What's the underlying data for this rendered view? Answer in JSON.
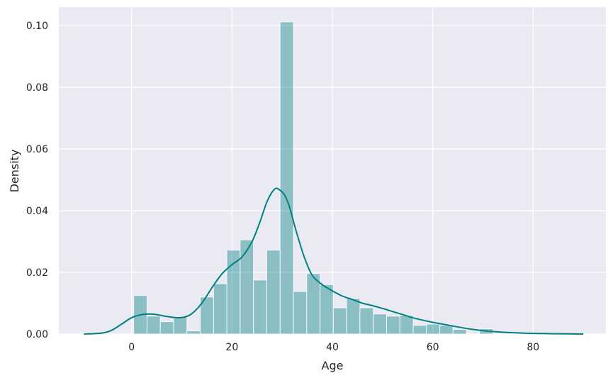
{
  "chart_data": {
    "type": "bar",
    "xlabel": "Age",
    "ylabel": "Density",
    "xlim": [
      -14.5,
      94.5
    ],
    "ylim": [
      0,
      0.106
    ],
    "xticks": [
      0,
      20,
      40,
      60,
      80
    ],
    "xtick_labels": [
      "0",
      "20",
      "40",
      "60",
      "80"
    ],
    "yticks": [
      0,
      0.02,
      0.04,
      0.06,
      0.08,
      0.1
    ],
    "ytick_labels": [
      "0.00",
      "0.02",
      "0.04",
      "0.06",
      "0.08",
      "0.10"
    ],
    "grid": true,
    "bar_color": "#008080",
    "bar_opacity": 0.4,
    "kde_color": "#008080",
    "background_color": "#eaeaf2",
    "histogram": {
      "bin_edges": [
        0.42,
        3.07,
        5.72,
        8.37,
        11.02,
        13.68,
        16.33,
        18.98,
        21.63,
        24.28,
        26.93,
        29.59,
        32.24,
        34.89,
        37.54,
        40.19,
        42.84,
        45.49,
        48.15,
        50.8,
        53.45,
        56.1,
        58.75,
        61.4,
        64.05,
        66.71,
        69.36,
        72.01,
        74.66,
        77.31,
        79.96
      ],
      "densities": [
        0.0125,
        0.0058,
        0.004,
        0.0056,
        0.001,
        0.012,
        0.0163,
        0.0272,
        0.0305,
        0.0175,
        0.0272,
        0.1012,
        0.0138,
        0.0196,
        0.016,
        0.0085,
        0.0115,
        0.0085,
        0.0065,
        0.0058,
        0.006,
        0.0028,
        0.0032,
        0.0028,
        0.0015,
        0.0,
        0.0017,
        0.0,
        0.0,
        0.0
      ]
    },
    "kde": {
      "x": [
        -9.5,
        -6,
        -4,
        -2,
        0,
        2,
        3.5,
        5,
        7,
        9,
        10.5,
        12,
        14,
        16,
        18,
        20,
        22,
        24,
        25.5,
        27,
        28.5,
        29.5,
        30.5,
        31.5,
        32.5,
        33.5,
        34.5,
        36,
        38,
        40,
        42,
        44,
        46,
        48,
        50,
        52,
        54,
        56,
        58,
        60,
        62,
        64,
        66,
        68,
        70,
        72,
        75,
        80,
        85,
        90
      ],
      "y": [
        0.0,
        0.0003,
        0.0012,
        0.0032,
        0.0053,
        0.0063,
        0.0065,
        0.0063,
        0.0057,
        0.0053,
        0.0055,
        0.0066,
        0.01,
        0.015,
        0.0195,
        0.0225,
        0.025,
        0.03,
        0.036,
        0.043,
        0.047,
        0.0467,
        0.045,
        0.041,
        0.035,
        0.0295,
        0.0245,
        0.019,
        0.016,
        0.014,
        0.0123,
        0.0112,
        0.01,
        0.0092,
        0.0083,
        0.0073,
        0.0063,
        0.0053,
        0.0045,
        0.0038,
        0.0032,
        0.0026,
        0.002,
        0.0015,
        0.0011,
        0.0008,
        0.0005,
        0.0002,
        0.0001,
        0.0
      ]
    }
  }
}
